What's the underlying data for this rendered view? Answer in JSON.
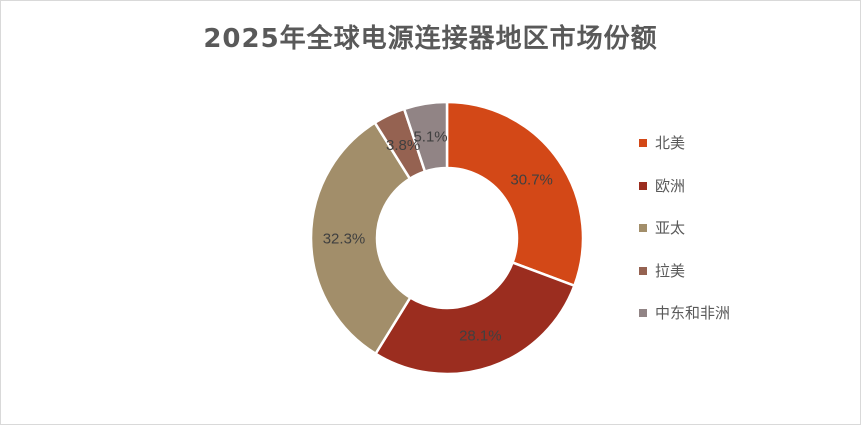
{
  "chart_data": {
    "type": "pie",
    "variant": "donut",
    "title": "2025年全球电源连接器地区市场份额",
    "categories": [
      "北美",
      "欧洲",
      "亚太",
      "拉美",
      "中东和非洲"
    ],
    "values": [
      30.7,
      28.1,
      32.3,
      3.8,
      5.1
    ],
    "labels": [
      "30.7%",
      "28.1%",
      "32.3%",
      "3.8%",
      "5.1%"
    ],
    "colors": [
      "#D34817",
      "#9B2D1F",
      "#A28E6A",
      "#956251",
      "#918485"
    ],
    "legend_position": "right"
  }
}
